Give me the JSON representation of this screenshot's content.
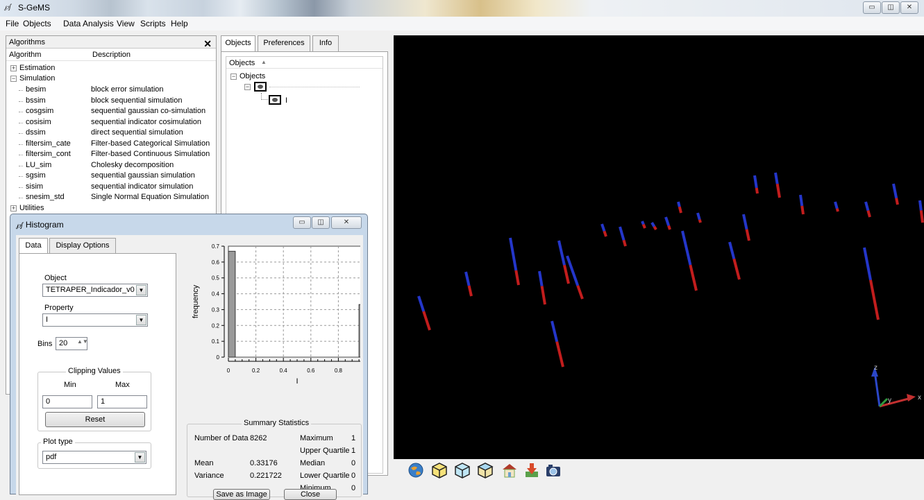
{
  "app": {
    "title": "S-GeMS",
    "icon_text": "℘ʃ"
  },
  "window_controls": {
    "minimize": "▭",
    "restore": "◫",
    "close": "✕"
  },
  "menu": [
    "File",
    "Objects",
    "Data Analysis",
    "View",
    "Scripts",
    "Help"
  ],
  "algorithms_panel": {
    "title": "Algorithms",
    "close": "✕",
    "columns": [
      "Algorithm",
      "Description"
    ],
    "groups": [
      {
        "label": "Estimation",
        "expander": "+"
      },
      {
        "label": "Simulation",
        "expander": "−"
      },
      {
        "label": "Utilities",
        "expander": "+"
      }
    ],
    "simulation_items": [
      {
        "name": "besim",
        "desc": "block error simulation"
      },
      {
        "name": "bssim",
        "desc": "block sequential simulation"
      },
      {
        "name": "cosgsim",
        "desc": "sequential gaussian co-simulation"
      },
      {
        "name": "cosisim",
        "desc": "sequential indicator cosimulation"
      },
      {
        "name": "dssim",
        "desc": "direct sequential simulation"
      },
      {
        "name": "filtersim_cate",
        "desc": "Filter-based Categorical Simulation"
      },
      {
        "name": "filtersim_cont",
        "desc": "Filter-based Continuous Simulation"
      },
      {
        "name": "LU_sim",
        "desc": "Cholesky decomposition"
      },
      {
        "name": "sgsim",
        "desc": "sequential gaussian simulation"
      },
      {
        "name": "sisim",
        "desc": "sequential indicator simulation"
      },
      {
        "name": "snesim_std",
        "desc": "Single Normal Equation Simulation"
      }
    ]
  },
  "object_panel": {
    "tabs": [
      "Objects",
      "Preferences",
      "Info"
    ],
    "column": "Objects",
    "sort_glyph": "▲",
    "root": "Objects",
    "root_expander": "−",
    "child_expander": "−",
    "property": "I"
  },
  "histogram": {
    "title": "Histogram",
    "icon_text": "℘ʃ",
    "tabs": [
      "Data",
      "Display Options"
    ],
    "object_label": "Object",
    "object_value": "TETRAPER_Indicador_v0",
    "property_label": "Property",
    "property_value": "I",
    "bins_label": "Bins",
    "bins_value": "20",
    "clipping": {
      "title": "Clipping Values",
      "min_label": "Min",
      "max_label": "Max",
      "min_value": "0",
      "max_value": "1",
      "reset_label": "Reset"
    },
    "plot_type_label": "Plot type",
    "plot_type_value": "pdf",
    "bottom_buttons": [
      "Save as Image",
      "Close"
    ],
    "summary": {
      "title": "Summary Statistics",
      "left": [
        {
          "label": "Number of Data",
          "value": "8262"
        },
        {
          "label": "Mean",
          "value": "0.33176"
        },
        {
          "label": "Variance",
          "value": "0.221722"
        }
      ],
      "right": [
        {
          "label": "Maximum",
          "value": "1"
        },
        {
          "label": "Upper Quartile",
          "value": "1"
        },
        {
          "label": "Median",
          "value": "0"
        },
        {
          "label": "Lower Quartile",
          "value": "0"
        },
        {
          "label": "Minimum",
          "value": "0"
        }
      ]
    }
  },
  "chart_data": {
    "type": "bar",
    "x": [
      0.025,
      0.975
    ],
    "values": [
      0.668,
      0.332
    ],
    "bar_width": 0.05,
    "xlabel": "I",
    "ylabel": "frequency",
    "xlim": [
      0,
      1
    ],
    "ylim": [
      0,
      0.7
    ],
    "xticks": [
      "0",
      "0.2",
      "0.4",
      "0.6",
      "0.8",
      "1"
    ],
    "yticks": [
      "0",
      "0.1",
      "0.2",
      "0.3",
      "0.4",
      "0.5",
      "0.6",
      "0.7"
    ],
    "grid": true,
    "bar_color": "#9a9a9a"
  },
  "viewer": {
    "axis_labels": {
      "z": "z",
      "y": "y",
      "x": "x"
    },
    "toolbar_icons": [
      "globe-icon",
      "cube-front-icon",
      "cube-side-icon",
      "cube-top-icon",
      "home-icon",
      "import-icon",
      "camera-icon"
    ]
  }
}
